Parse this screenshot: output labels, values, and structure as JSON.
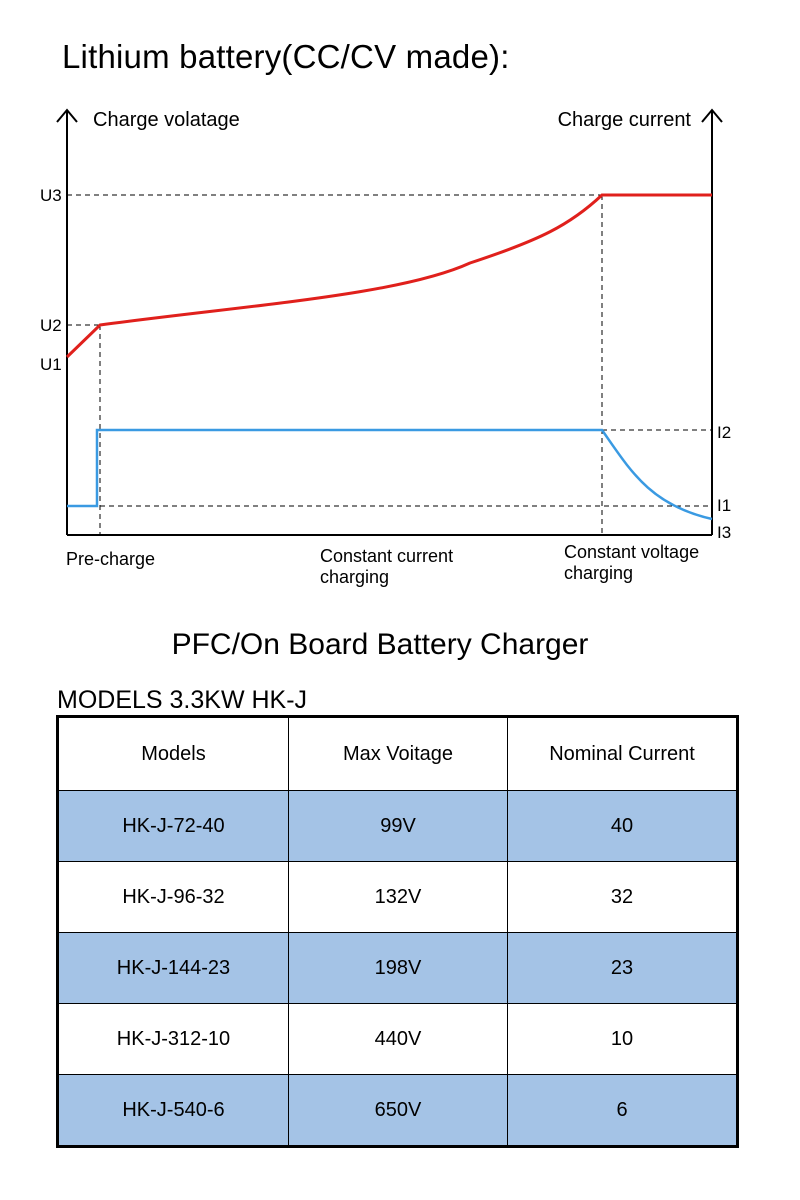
{
  "page_title": "Lithium battery(CC/CV made):",
  "diagram": {
    "left_axis_label": "Charge volatage",
    "right_axis_label": "Charge current",
    "voltage_levels": [
      "U3",
      "U2",
      "U1"
    ],
    "current_levels": [
      "I2",
      "I1",
      "I3"
    ],
    "stages": [
      {
        "label_line1": "Pre-charge",
        "label_line2": ""
      },
      {
        "label_line1": "Constant current",
        "label_line2": "charging"
      },
      {
        "label_line1": "Constant voltage",
        "label_line2": "charging"
      }
    ],
    "colors": {
      "voltage_curve": "#e0201c",
      "current_curve": "#3a9ae2",
      "axis": "#000000"
    }
  },
  "section_title": "PFC/On Board Battery Charger",
  "models_title": "MODELS  3.3KW HK-J",
  "table": {
    "headers": [
      "Models",
      "Max Voitage",
      "Nominal Current"
    ],
    "rows": [
      [
        "HK-J-72-40",
        "99V",
        "40"
      ],
      [
        "HK-J-96-32",
        "132V",
        "32"
      ],
      [
        "HK-J-144-23",
        "198V",
        "23"
      ],
      [
        "HK-J-312-10",
        "440V",
        "10"
      ],
      [
        "HK-J-540-6",
        "650V",
        "6"
      ]
    ],
    "shaded_row_color": "#a4c3e6"
  }
}
